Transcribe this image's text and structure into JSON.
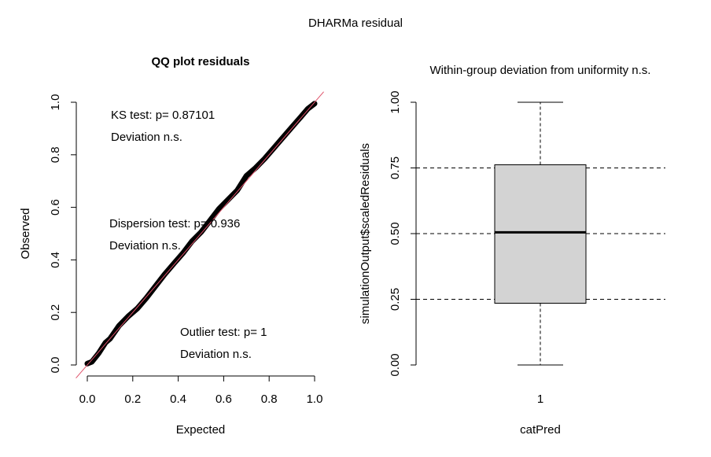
{
  "figure": {
    "title": "DHARMa residual"
  },
  "chart_data": [
    {
      "type": "scatter",
      "title": "QQ plot residuals",
      "xlabel": "Expected",
      "ylabel": "Observed",
      "xlim": [
        0,
        1
      ],
      "ylim": [
        0,
        1
      ],
      "xticks": [
        "0.0",
        "0.2",
        "0.4",
        "0.6",
        "0.8",
        "1.0"
      ],
      "yticks": [
        "0.0",
        "0.2",
        "0.4",
        "0.6",
        "0.8",
        "1.0"
      ],
      "points_color": "#000000",
      "reference_line": {
        "slope": 1,
        "intercept": 0,
        "color": "#df536b"
      },
      "curve": [
        [
          0.0,
          0.005
        ],
        [
          0.02,
          0.012
        ],
        [
          0.05,
          0.045
        ],
        [
          0.08,
          0.085
        ],
        [
          0.1,
          0.1
        ],
        [
          0.14,
          0.15
        ],
        [
          0.18,
          0.185
        ],
        [
          0.22,
          0.215
        ],
        [
          0.26,
          0.255
        ],
        [
          0.3,
          0.3
        ],
        [
          0.34,
          0.345
        ],
        [
          0.38,
          0.385
        ],
        [
          0.42,
          0.425
        ],
        [
          0.46,
          0.47
        ],
        [
          0.5,
          0.505
        ],
        [
          0.54,
          0.55
        ],
        [
          0.58,
          0.595
        ],
        [
          0.62,
          0.63
        ],
        [
          0.66,
          0.665
        ],
        [
          0.7,
          0.72
        ],
        [
          0.74,
          0.75
        ],
        [
          0.78,
          0.785
        ],
        [
          0.82,
          0.825
        ],
        [
          0.86,
          0.865
        ],
        [
          0.9,
          0.905
        ],
        [
          0.94,
          0.945
        ],
        [
          0.97,
          0.975
        ],
        [
          1.0,
          0.995
        ]
      ],
      "annotations": [
        {
          "lines": [
            "KS test: p= 0.87101",
            "Deviation  n.s."
          ]
        },
        {
          "lines": [
            "Dispersion test: p= 0.936",
            "Deviation  n.s."
          ]
        },
        {
          "lines": [
            "Outlier test: p= 1",
            "Deviation  n.s."
          ]
        }
      ]
    },
    {
      "type": "box",
      "title": "Within-group deviation from uniformity n.s.",
      "xlabel": "catPred",
      "ylabel": "simulationOutput$scaledResiduals",
      "ylim": [
        0,
        1
      ],
      "yticks": [
        "0.00",
        "0.25",
        "0.50",
        "0.75",
        "1.00"
      ],
      "categories": [
        "1"
      ],
      "box": {
        "min": 0.0,
        "q1": 0.235,
        "median": 0.505,
        "q3": 0.762,
        "max": 1.0
      },
      "box_fill": "#d3d3d3",
      "reference_lines": [
        0.25,
        0.5,
        0.75
      ]
    }
  ]
}
